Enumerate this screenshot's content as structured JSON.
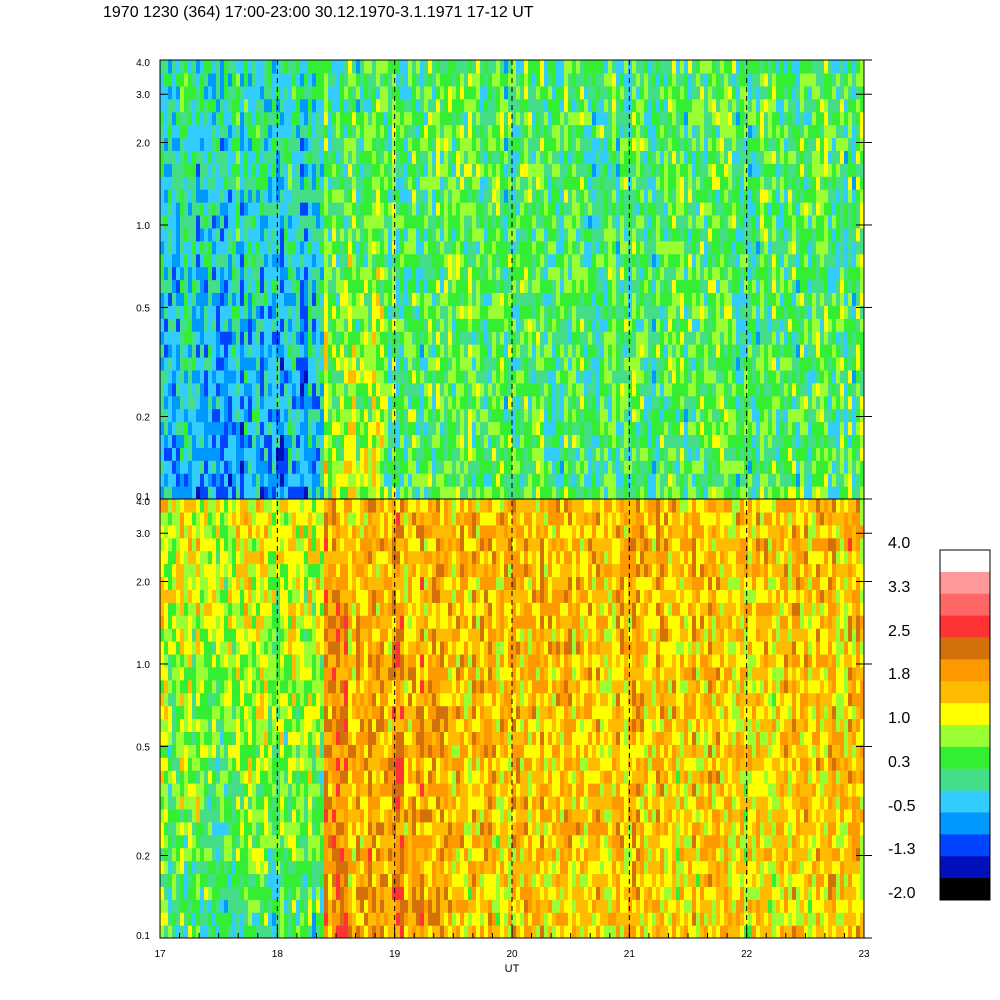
{
  "title": "1970 1230 (364) 17:00-23:00 30.12.1970-3.1.1971  17-12 UT",
  "chart_data": {
    "type": "heatmap",
    "xlabel": "UT",
    "x_range": [
      17,
      23
    ],
    "x_ticks": [
      "17",
      "18",
      "19",
      "20",
      "21",
      "22",
      "23"
    ],
    "dashed_vertical_lines_at": [
      18,
      19,
      20,
      21,
      22
    ],
    "y_scale": "log",
    "panels": [
      {
        "name": "upper",
        "ylim": [
          0.1,
          4.0
        ],
        "y_ticks": [
          "0.1",
          "0.2",
          "0.5",
          "1.0",
          "2.0",
          "3.0",
          "4.0"
        ],
        "y_tick_values": [
          0.1,
          0.2,
          0.5,
          1.0,
          2.0,
          3.0,
          4.0
        ],
        "approx_level_by_ut": [
          {
            "ut_from": 17.0,
            "ut_to": 18.4,
            "low_band": -0.6,
            "high_band": 0.0
          },
          {
            "ut_from": 18.4,
            "ut_to": 18.9,
            "low_band": 1.0,
            "high_band": 0.3
          },
          {
            "ut_from": 18.9,
            "ut_to": 23.0,
            "low_band": 0.3,
            "high_band": 0.3
          }
        ]
      },
      {
        "name": "lower",
        "ylim": [
          0.1,
          4.0
        ],
        "y_ticks": [
          "0.1",
          "0.2",
          "0.5",
          "1.0",
          "2.0",
          "3.0",
          "4.0"
        ],
        "y_tick_values": [
          0.1,
          0.2,
          0.5,
          1.0,
          2.0,
          3.0,
          4.0
        ],
        "approx_level_by_ut": [
          {
            "ut_from": 17.0,
            "ut_to": 18.4,
            "low_band": 0.3,
            "high_band": 1.2
          },
          {
            "ut_from": 18.4,
            "ut_to": 19.5,
            "low_band": 1.9,
            "high_band": 1.7
          },
          {
            "ut_from": 19.5,
            "ut_to": 23.0,
            "low_band": 1.4,
            "high_band": 1.6
          }
        ]
      }
    ],
    "colorbar": {
      "labels": [
        "4.0",
        "3.3",
        "2.5",
        "1.8",
        "1.0",
        "0.3",
        "-0.5",
        "-1.3",
        "-2.0"
      ],
      "range": [
        -2.0,
        4.0
      ],
      "colors_top_to_bottom": [
        "#ffffff",
        "#ff9999",
        "#ff6666",
        "#ff3333",
        "#d4700a",
        "#ff9900",
        "#ffbb00",
        "#ffff00",
        "#99ff33",
        "#33ee33",
        "#44dd88",
        "#33ccff",
        "#0099ff",
        "#0044ff",
        "#0011bb",
        "#000000"
      ]
    }
  }
}
